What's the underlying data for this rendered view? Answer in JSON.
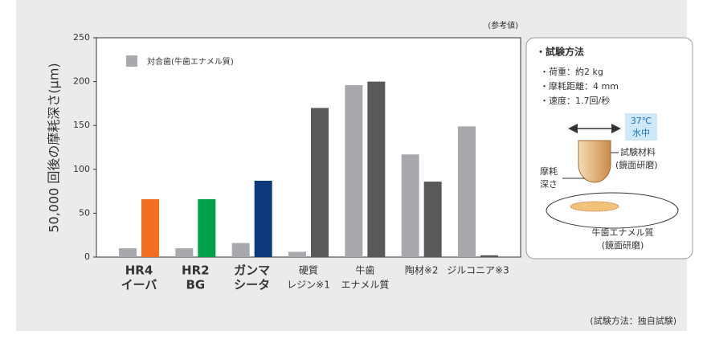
{
  "chart_data": {
    "type": "bar",
    "ylabel": "50,000 回後の摩耗深さ(μm)",
    "note": "(参考値)",
    "footnote": "(試験方法：独自試験)",
    "categories": [
      [
        "HR4",
        "イーバ"
      ],
      [
        "HR2",
        "BG"
      ],
      [
        "ガンマ",
        "シータ"
      ],
      [
        "硬質",
        "レジン※1"
      ],
      [
        "牛歯",
        "エナメル質"
      ],
      [
        "陶材※2"
      ],
      [
        "ジルコニア※3"
      ]
    ],
    "series": [
      {
        "name": "対合歯(牛歯エナメル質)",
        "color": "#a7a9ac",
        "values": [
          10,
          10,
          16,
          6,
          196,
          117,
          149
        ]
      },
      {
        "colors": [
          "#f26f21",
          "#00a04b",
          "#0c3a7a",
          "#58595b",
          "#58595b",
          "#58595b",
          "#58595b"
        ],
        "values": [
          66,
          66,
          87,
          170,
          200,
          86,
          2
        ]
      }
    ],
    "ylim": [
      0,
      250
    ],
    "yticks": [
      0,
      50,
      100,
      150,
      200,
      250
    ],
    "grid": false
  },
  "test_method": {
    "title": "・試験方法",
    "items": [
      "・荷重：約2 kg",
      "・摩耗距離：4 mm",
      "・速度：1.7回/秒"
    ],
    "condition": [
      "37℃",
      "水中"
    ],
    "material": [
      "試験材料",
      "(鏡面研磨)"
    ],
    "depth": [
      "摩耗",
      "深さ"
    ],
    "enamel": [
      "牛歯エナメル質",
      "(鏡面研磨)"
    ]
  }
}
